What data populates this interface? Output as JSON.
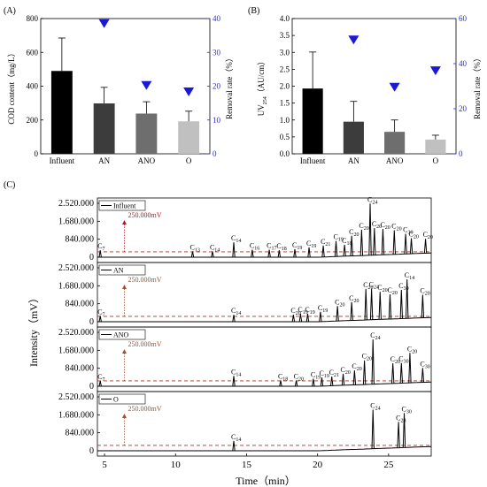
{
  "chart_data": [
    {
      "panel_label": "(A)",
      "type": "bar",
      "categories": [
        "Influent",
        "AN",
        "ANO",
        "O"
      ],
      "series": [
        {
          "name": "COD content",
          "values": [
            490,
            298,
            238,
            192
          ],
          "errors": [
            195,
            95,
            70,
            60
          ],
          "colors": [
            "#000000",
            "#3c3c3c",
            "#6e6e6e",
            "#c0c0c0"
          ]
        },
        {
          "name": "Removal rate",
          "axis": "right",
          "marker": "triangle-down",
          "color": "#1a1ad6",
          "values": [
            null,
            38.5,
            20.2,
            18.3
          ]
        }
      ],
      "ylabel": "COD content（mg/L）",
      "ylabel_right": "Removal rate（%）",
      "ylim": [
        0,
        800
      ],
      "yticks": [
        0,
        200,
        400,
        600,
        800
      ],
      "ylim_right": [
        0,
        40
      ],
      "yticks_right": [
        0,
        10,
        20,
        30,
        40
      ]
    },
    {
      "panel_label": "(B)",
      "type": "bar",
      "categories": [
        "Influent",
        "AN",
        "ANO",
        "O"
      ],
      "series": [
        {
          "name": "UV254",
          "values": [
            1.93,
            0.95,
            0.65,
            0.42
          ],
          "errors": [
            1.08,
            0.6,
            0.35,
            0.13
          ],
          "colors": [
            "#000000",
            "#3c3c3c",
            "#6e6e6e",
            "#c0c0c0"
          ]
        },
        {
          "name": "Removal rate",
          "axis": "right",
          "marker": "triangle-down",
          "color": "#1a1ad6",
          "values": [
            null,
            50.5,
            29.5,
            36.8
          ]
        }
      ],
      "ylabel_main": "UV",
      "ylabel_sub": "254",
      "ylabel_unit": "（AU/cm）",
      "ylabel_right": "Removal rate（%）",
      "ylim": [
        0,
        4.0
      ],
      "yticks": [
        "0.0",
        "0.5",
        "1.0",
        "1.5",
        "2.0",
        "2.5",
        "3.0",
        "3.5",
        "4.0"
      ],
      "ylim_right": [
        0,
        60
      ],
      "yticks_right": [
        0,
        20,
        40,
        60
      ]
    },
    {
      "panel_label": "(C)",
      "type": "line",
      "xlabel": "Time（min）",
      "ylabel": "Intensity（mV）",
      "xlim": [
        4.5,
        28
      ],
      "xticks": [
        5,
        10,
        15,
        20,
        25
      ],
      "ytick_labels": [
        "2.520.000",
        "1.680.000",
        "840.000",
        "0"
      ],
      "reference_line_label": "250.000mV",
      "traces": [
        {
          "name": "Influent",
          "annotation_color": "#c0141e",
          "peaks": [
            {
              "label": "7",
              "t": 4.7,
              "h": 0.12
            },
            {
              "label": "13",
              "t": 11.2,
              "h": 0.1
            },
            {
              "label": "14",
              "t": 12.6,
              "h": 0.1
            },
            {
              "label": "14",
              "t": 14.1,
              "h": 0.26
            },
            {
              "label": "16",
              "t": 15.4,
              "h": 0.13
            },
            {
              "label": "17",
              "t": 16.6,
              "h": 0.13
            },
            {
              "label": "18",
              "t": 17.3,
              "h": 0.12
            },
            {
              "label": "19",
              "t": 18.4,
              "h": 0.14
            },
            {
              "label": "19",
              "t": 19.4,
              "h": 0.17
            },
            {
              "label": "21",
              "t": 20.4,
              "h": 0.2
            },
            {
              "label": "19",
              "t": 21.3,
              "h": 0.27
            },
            {
              "label": "18",
              "t": 21.9,
              "h": 0.2
            },
            {
              "label": "20",
              "t": 22.4,
              "h": 0.35
            },
            {
              "label": "20",
              "t": 23.1,
              "h": 0.45
            },
            {
              "label": "24",
              "t": 23.7,
              "h": 0.9
            },
            {
              "label": "20",
              "t": 24.0,
              "h": 0.47
            },
            {
              "label": "20",
              "t": 24.6,
              "h": 0.45
            },
            {
              "label": "20",
              "t": 25.4,
              "h": 0.42
            },
            {
              "label": "30",
              "t": 26.2,
              "h": 0.35
            },
            {
              "label": "20",
              "t": 26.6,
              "h": 0.27
            },
            {
              "label": "20",
              "t": 27.6,
              "h": 0.25
            }
          ]
        },
        {
          "name": "AN",
          "annotation_color": "#a0522d",
          "peaks": [
            {
              "label": "7",
              "t": 4.7,
              "h": 0.1
            },
            {
              "label": "14",
              "t": 14.1,
              "h": 0.12
            },
            {
              "label": "20",
              "t": 18.3,
              "h": 0.12
            },
            {
              "label": "19",
              "t": 18.8,
              "h": 0.14
            },
            {
              "label": "19",
              "t": 19.3,
              "h": 0.14
            },
            {
              "label": "19",
              "t": 20.2,
              "h": 0.17
            },
            {
              "label": "20",
              "t": 21.4,
              "h": 0.26
            },
            {
              "label": "20",
              "t": 22.4,
              "h": 0.32
            },
            {
              "label": "20",
              "t": 23.4,
              "h": 0.54
            },
            {
              "label": "24",
              "t": 23.8,
              "h": 0.54
            },
            {
              "label": "20",
              "t": 24.4,
              "h": 0.48
            },
            {
              "label": "20",
              "t": 25.1,
              "h": 0.43
            },
            {
              "label": "30",
              "t": 25.9,
              "h": 0.5
            },
            {
              "label": "14",
              "t": 26.3,
              "h": 0.68
            },
            {
              "label": "20",
              "t": 27.4,
              "h": 0.4
            }
          ]
        },
        {
          "name": "ANO",
          "annotation_color": "#a0522d",
          "peaks": [
            {
              "label": "7",
              "t": 4.7,
              "h": 0.09
            },
            {
              "label": "14",
              "t": 14.1,
              "h": 0.18
            },
            {
              "label": "18",
              "t": 17.4,
              "h": 0.1
            },
            {
              "label": "20",
              "t": 18.5,
              "h": 0.1
            },
            {
              "label": "19",
              "t": 19.7,
              "h": 0.13
            },
            {
              "label": "19",
              "t": 20.3,
              "h": 0.15
            },
            {
              "label": "21",
              "t": 21.0,
              "h": 0.16
            },
            {
              "label": "20",
              "t": 21.8,
              "h": 0.2
            },
            {
              "label": "20",
              "t": 22.6,
              "h": 0.25
            },
            {
              "label": "20",
              "t": 23.3,
              "h": 0.42
            },
            {
              "label": "24",
              "t": 23.9,
              "h": 0.78
            },
            {
              "label": "20",
              "t": 25.3,
              "h": 0.35
            },
            {
              "label": "30",
              "t": 25.9,
              "h": 0.35
            },
            {
              "label": "20",
              "t": 26.5,
              "h": 0.52
            },
            {
              "label": "30",
              "t": 27.4,
              "h": 0.25
            }
          ]
        },
        {
          "name": "O",
          "annotation_color": "#a0522d",
          "peaks": [
            {
              "label": "14",
              "t": 14.1,
              "h": 0.17
            },
            {
              "label": "24",
              "t": 23.9,
              "h": 0.68
            },
            {
              "label": "28",
              "t": 25.7,
              "h": 0.45
            },
            {
              "label": "30",
              "t": 26.1,
              "h": 0.6
            }
          ]
        }
      ]
    }
  ]
}
